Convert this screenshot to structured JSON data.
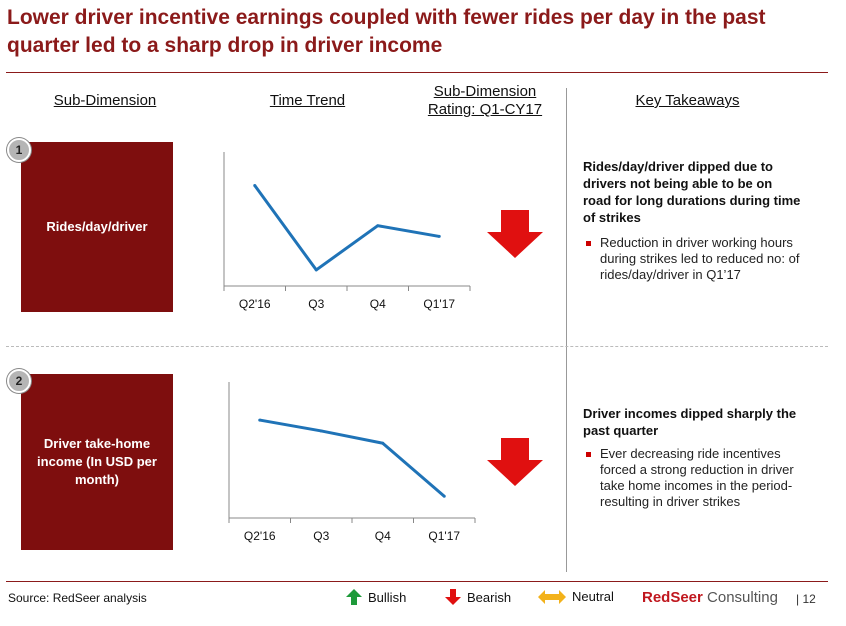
{
  "title": "Lower driver incentive earnings coupled with fewer rides per day in the past quarter led to a sharp drop in driver income",
  "headers": {
    "sub_dimension": "Sub-Dimension",
    "time_trend": "Time Trend",
    "rating_line1": "Sub-Dimension",
    "rating_line2": "Rating: Q1-CY17",
    "key_takeaways": "Key Takeaways"
  },
  "rows": [
    {
      "number": "1",
      "label": "Rides/day/driver",
      "rating": "Bearish",
      "takeaway_head": "Rides/day/driver dipped due to drivers not being able to be on road for long durations during time of strikes",
      "takeaway_bullet": "Reduction in driver working hours during strikes led to reduced no: of rides/day/driver in Q1’17"
    },
    {
      "number": "2",
      "label": "Driver take-home income (In USD per month)",
      "rating": "Bearish",
      "takeaway_head": "Driver incomes dipped sharply the past quarter",
      "takeaway_bullet": "Ever decreasing ride incentives forced a strong reduction in driver take home incomes in the period- resulting in driver strikes"
    }
  ],
  "chart_data": [
    {
      "type": "line",
      "categories": [
        "Q2'16",
        "Q3",
        "Q4",
        "Q1'17"
      ],
      "series": [
        {
          "values": [
            0.75,
            0.12,
            0.45,
            0.37
          ]
        }
      ],
      "ylim": [
        0,
        1
      ],
      "color": "#1f73b7"
    },
    {
      "type": "line",
      "categories": [
        "Q2'16",
        "Q3",
        "Q4",
        "Q1'17"
      ],
      "series": [
        {
          "values": [
            0.72,
            0.64,
            0.55,
            0.16
          ]
        }
      ],
      "ylim": [
        0,
        1
      ],
      "color": "#1f73b7"
    }
  ],
  "footer": {
    "source": "Source: RedSeer analysis",
    "legend": [
      {
        "label": "Bullish",
        "icon": "up-arrow-icon",
        "color": "#1e9a3a"
      },
      {
        "label": "Bearish",
        "icon": "down-arrow-icon",
        "color": "#e01010"
      },
      {
        "label": "Neutral",
        "icon": "left-right-arrow-icon",
        "color": "#f3b21a"
      }
    ],
    "brand_red": "RedSeer",
    "brand_rest": " Consulting",
    "page_number": "| 12"
  },
  "colors": {
    "accent": "#8b1a1a",
    "box": "#7e0e0e",
    "line": "#1f73b7",
    "bearish": "#e01010"
  }
}
